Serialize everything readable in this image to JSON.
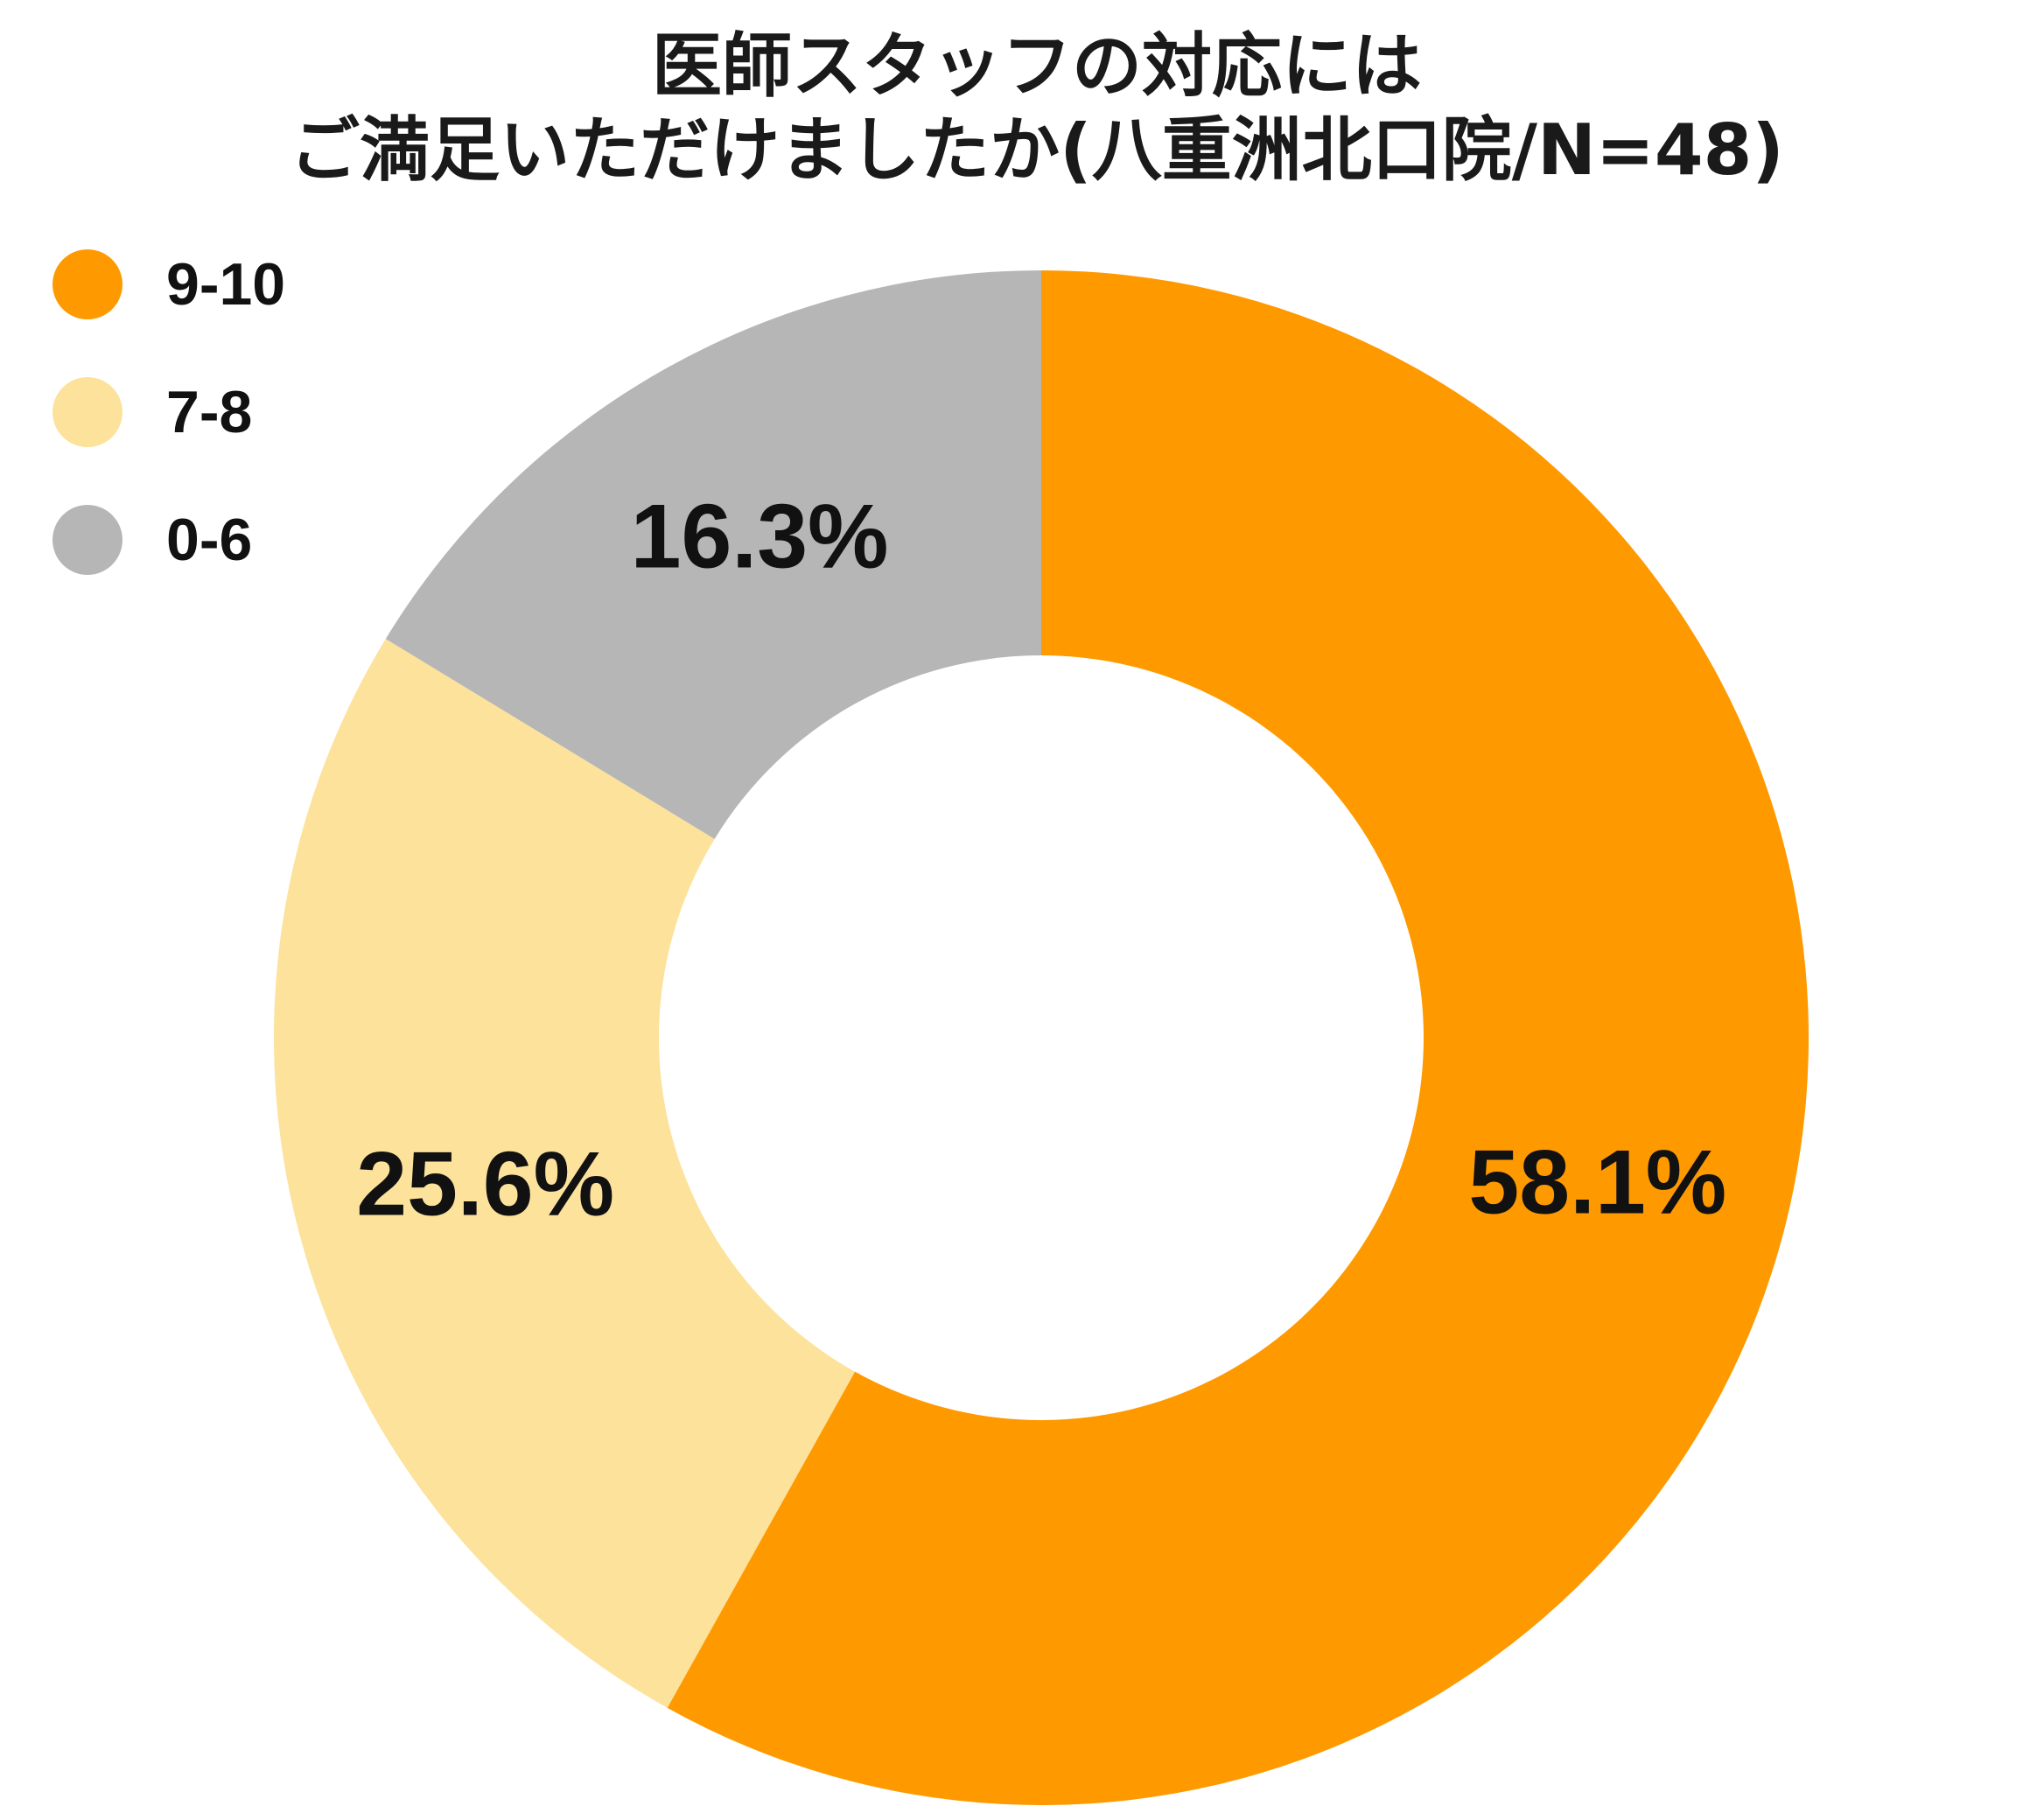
{
  "chart_data": {
    "type": "pie",
    "subtype": "donut",
    "title_lines": [
      "医師スタッフの対応には",
      "ご満足いただけましたか(八重洲北口院/N=48)"
    ],
    "legend_position": "top-left",
    "categories": [
      "9-10",
      "7-8",
      "0-6"
    ],
    "values": [
      58.1,
      25.6,
      16.3
    ],
    "value_labels": [
      "58.1%",
      "25.6%",
      "16.3%"
    ],
    "colors": [
      "#FF9900",
      "#FCE29B",
      "#B6B6B6"
    ]
  }
}
